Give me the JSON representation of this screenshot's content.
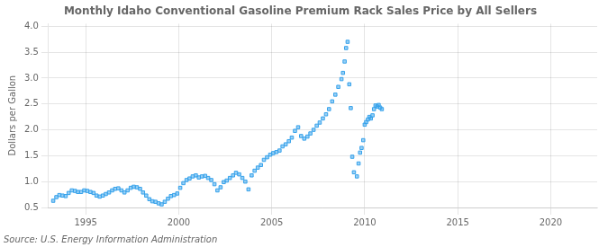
{
  "chart_data": {
    "type": "scatter",
    "title": "Monthly Idaho Conventional Gasoline Premium Rack Sales Price by All Sellers",
    "ylabel": "Dollars per Gallon",
    "annotations": [
      "Source: U.S. Energy Information Administration"
    ],
    "marker": "square",
    "grid": true,
    "xlim": [
      1993.0,
      2022.5
    ],
    "ylim": [
      0.5,
      4.05
    ],
    "xticks": [
      1995,
      2000,
      2005,
      2010,
      2015,
      2020
    ],
    "yticks": [
      0.5,
      {
        "value": 1,
        "label": "1.0"
      },
      1.5,
      {
        "value": 2,
        "label": "2.0"
      },
      2.5,
      {
        "value": 3,
        "label": "3.0"
      },
      3.5,
      {
        "value": 4,
        "label": "4.0"
      }
    ],
    "x": [
      1993.25,
      1993.42,
      1993.58,
      1993.75,
      1993.92,
      1994.08,
      1994.25,
      1994.42,
      1994.58,
      1994.75,
      1994.92,
      1995.08,
      1995.25,
      1995.42,
      1995.58,
      1995.75,
      1995.92,
      1996.08,
      1996.25,
      1996.42,
      1996.58,
      1996.75,
      1996.92,
      1997.08,
      1997.25,
      1997.42,
      1997.58,
      1997.75,
      1997.92,
      1998.08,
      1998.25,
      1998.42,
      1998.58,
      1998.75,
      1998.92,
      1999.08,
      1999.25,
      1999.42,
      1999.58,
      1999.75,
      1999.92,
      2000.08,
      2000.25,
      2000.42,
      2000.58,
      2000.75,
      2000.92,
      2001.08,
      2001.25,
      2001.42,
      2001.58,
      2001.75,
      2001.92,
      2002.08,
      2002.25,
      2002.42,
      2002.58,
      2002.75,
      2002.92,
      2003.08,
      2003.25,
      2003.42,
      2003.58,
      2003.75,
      2003.92,
      2004.08,
      2004.25,
      2004.42,
      2004.58,
      2004.75,
      2004.92,
      2005.08,
      2005.25,
      2005.42,
      2005.58,
      2005.75,
      2005.92,
      2006.08,
      2006.25,
      2006.42,
      2006.58,
      2006.75,
      2006.92,
      2007.08,
      2007.25,
      2007.42,
      2007.58,
      2007.75,
      2007.92,
      2008.08,
      2008.25,
      2008.42,
      2008.58,
      2008.75,
      2008.83,
      2008.92,
      2009.0,
      2009.08,
      2009.17,
      2009.25,
      2009.33,
      2009.42,
      2009.58,
      2009.67,
      2009.75,
      2009.83,
      2009.92,
      2010.0,
      2010.08,
      2010.17,
      2010.25,
      2010.33,
      2010.42,
      2010.5,
      2010.58,
      2010.67,
      2010.75,
      2010.83,
      2010.92
    ],
    "values": [
      0.63,
      0.7,
      0.74,
      0.73,
      0.72,
      0.78,
      0.83,
      0.82,
      0.8,
      0.8,
      0.83,
      0.82,
      0.8,
      0.78,
      0.73,
      0.71,
      0.73,
      0.76,
      0.79,
      0.83,
      0.86,
      0.87,
      0.83,
      0.79,
      0.83,
      0.88,
      0.9,
      0.89,
      0.86,
      0.79,
      0.73,
      0.66,
      0.62,
      0.61,
      0.58,
      0.56,
      0.61,
      0.67,
      0.72,
      0.74,
      0.77,
      0.88,
      0.97,
      1.03,
      1.06,
      1.1,
      1.12,
      1.08,
      1.1,
      1.11,
      1.07,
      1.03,
      0.95,
      0.83,
      0.89,
      0.99,
      1.02,
      1.07,
      1.12,
      1.17,
      1.14,
      1.07,
      1.0,
      0.85,
      1.12,
      1.21,
      1.27,
      1.32,
      1.42,
      1.47,
      1.52,
      1.55,
      1.57,
      1.6,
      1.68,
      1.72,
      1.78,
      1.85,
      1.98,
      2.05,
      1.88,
      1.83,
      1.87,
      1.93,
      2.0,
      2.08,
      2.14,
      2.22,
      2.3,
      2.4,
      2.55,
      2.68,
      2.83,
      2.98,
      3.1,
      3.32,
      3.58,
      3.7,
      2.88,
      2.42,
      1.48,
      1.18,
      1.1,
      1.35,
      1.56,
      1.65,
      1.8,
      2.1,
      2.15,
      2.2,
      2.25,
      2.22,
      2.28,
      2.4,
      2.47,
      2.45,
      2.48,
      2.43,
      2.4
    ]
  }
}
